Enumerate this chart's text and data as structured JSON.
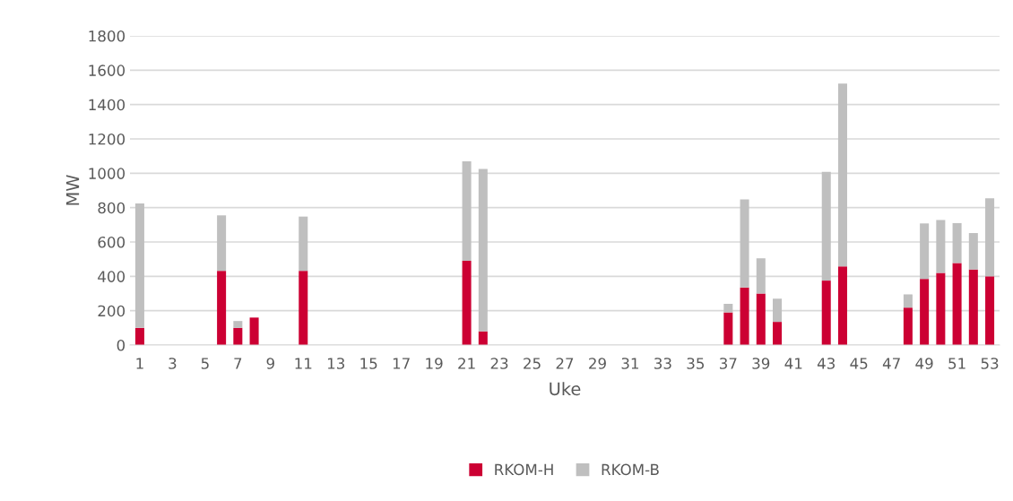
{
  "chart_data": {
    "type": "bar",
    "stacked": true,
    "xlabel": "Uke",
    "ylabel": "MW",
    "categories": [
      "1",
      null,
      "3",
      null,
      "5",
      null,
      "7",
      null,
      "9",
      null,
      "11",
      null,
      "13",
      null,
      "15",
      null,
      "17",
      null,
      "19",
      null,
      "21",
      null,
      "23",
      null,
      "25",
      null,
      "27",
      null,
      "29",
      null,
      "31",
      null,
      "33",
      null,
      "35",
      null,
      "37",
      null,
      "39",
      null,
      "41",
      null,
      "43",
      null,
      "45",
      null,
      "47",
      null,
      "49",
      null,
      "51",
      null,
      "53"
    ],
    "series": [
      {
        "name": "RKOM-H",
        "color": "#cc0033",
        "values": [
          100,
          0,
          0,
          0,
          0,
          432,
          100,
          160,
          0,
          0,
          432,
          0,
          0,
          0,
          0,
          0,
          0,
          0,
          0,
          0,
          490,
          80,
          0,
          0,
          0,
          0,
          0,
          0,
          0,
          0,
          0,
          0,
          0,
          0,
          0,
          0,
          190,
          335,
          300,
          135,
          0,
          0,
          375,
          458,
          0,
          0,
          0,
          218,
          385,
          420,
          478,
          440,
          400
        ]
      },
      {
        "name": "RKOM-B",
        "color": "#bfbfbf",
        "values": [
          725,
          0,
          0,
          0,
          0,
          323,
          40,
          0,
          0,
          0,
          316,
          0,
          0,
          0,
          0,
          0,
          0,
          0,
          0,
          0,
          580,
          945,
          0,
          0,
          0,
          0,
          0,
          0,
          0,
          0,
          0,
          0,
          0,
          0,
          0,
          0,
          50,
          513,
          205,
          135,
          0,
          0,
          633,
          1064,
          0,
          0,
          0,
          77,
          323,
          308,
          232,
          212,
          455
        ]
      }
    ],
    "ylim": [
      0,
      1800
    ],
    "yticks": [
      0,
      200,
      400,
      600,
      800,
      1000,
      1200,
      1400,
      1600,
      1800
    ],
    "grid": "y",
    "legend": "bottom"
  }
}
